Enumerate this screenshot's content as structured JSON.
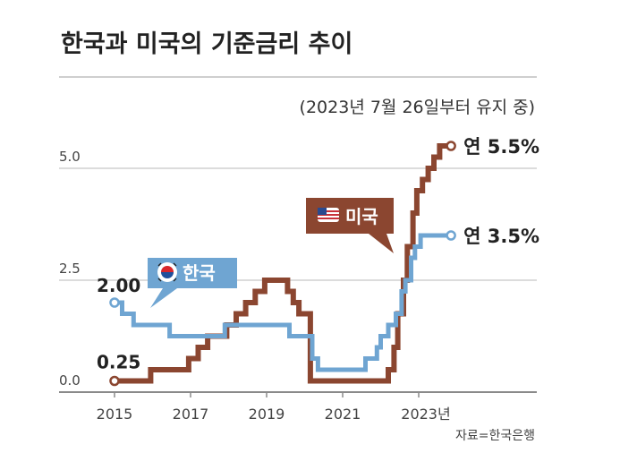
{
  "chart_data": {
    "type": "line",
    "title": "한국과 미국의 기준금리 추이",
    "subtitle": "(2023년 7월 26일부터 유지 중)",
    "source": "자료=한국은행",
    "x_ticks": [
      "2015",
      "2017",
      "2019",
      "2021",
      "2023년"
    ],
    "y_ticks": [
      "0.0",
      "2.5",
      "5.0"
    ],
    "ylim": [
      0,
      5.5
    ],
    "grid": true,
    "series": [
      {
        "name": "한국",
        "color": "#6fa5d2",
        "start_label": "2.00",
        "end_label": "연 3.5%",
        "points": [
          [
            2015.0,
            2.0
          ],
          [
            2015.2,
            1.75
          ],
          [
            2015.5,
            1.5
          ],
          [
            2016.45,
            1.25
          ],
          [
            2017.9,
            1.5
          ],
          [
            2019.55,
            1.5
          ],
          [
            2019.6,
            1.25
          ],
          [
            2019.8,
            1.25
          ],
          [
            2019.85,
            1.25
          ],
          [
            2020.2,
            0.75
          ],
          [
            2020.35,
            0.5
          ],
          [
            2021.6,
            0.75
          ],
          [
            2021.9,
            1.0
          ],
          [
            2022.0,
            1.25
          ],
          [
            2022.2,
            1.5
          ],
          [
            2022.4,
            1.75
          ],
          [
            2022.55,
            2.25
          ],
          [
            2022.65,
            2.5
          ],
          [
            2022.8,
            3.0
          ],
          [
            2022.9,
            3.25
          ],
          [
            2023.05,
            3.5
          ],
          [
            2023.85,
            3.5
          ]
        ]
      },
      {
        "name": "미국",
        "color": "#8b4630",
        "start_label": "0.25",
        "end_label": "연 5.5%",
        "points": [
          [
            2015.0,
            0.25
          ],
          [
            2015.95,
            0.5
          ],
          [
            2016.95,
            0.75
          ],
          [
            2017.2,
            1.0
          ],
          [
            2017.45,
            1.25
          ],
          [
            2017.95,
            1.5
          ],
          [
            2018.2,
            1.75
          ],
          [
            2018.45,
            2.0
          ],
          [
            2018.7,
            2.25
          ],
          [
            2018.95,
            2.5
          ],
          [
            2019.55,
            2.25
          ],
          [
            2019.7,
            2.0
          ],
          [
            2019.85,
            1.75
          ],
          [
            2020.15,
            0.25
          ],
          [
            2022.2,
            0.5
          ],
          [
            2022.35,
            1.0
          ],
          [
            2022.45,
            1.75
          ],
          [
            2022.6,
            2.5
          ],
          [
            2022.7,
            3.25
          ],
          [
            2022.85,
            4.0
          ],
          [
            2022.95,
            4.5
          ],
          [
            2023.1,
            4.75
          ],
          [
            2023.25,
            5.0
          ],
          [
            2023.4,
            5.25
          ],
          [
            2023.55,
            5.5
          ],
          [
            2023.85,
            5.5
          ]
        ]
      }
    ]
  }
}
